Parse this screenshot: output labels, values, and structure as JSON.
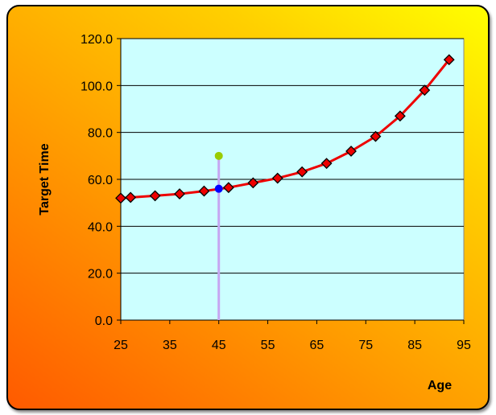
{
  "chart_data": {
    "type": "line",
    "xlabel": "Age",
    "ylabel": "Target Time",
    "xlim": [
      25,
      95
    ],
    "ylim": [
      0,
      120
    ],
    "x_ticks": [
      "25",
      "35",
      "45",
      "55",
      "65",
      "75",
      "85",
      "95"
    ],
    "y_ticks": [
      "0.0",
      "20.0",
      "40.0",
      "60.0",
      "80.0",
      "100.0",
      "120.0"
    ],
    "grid": "horizontal",
    "series": [
      {
        "color": "#ee0000",
        "marker_color": "#ee0000",
        "points": [
          {
            "x": 25,
            "y": 52.0
          },
          {
            "x": 27,
            "y": 52.3
          },
          {
            "x": 32,
            "y": 53.0
          },
          {
            "x": 37,
            "y": 53.8
          },
          {
            "x": 42,
            "y": 55.0
          },
          {
            "x": 47,
            "y": 56.5
          },
          {
            "x": 52,
            "y": 58.5
          },
          {
            "x": 57,
            "y": 60.5
          },
          {
            "x": 62,
            "y": 63.2
          },
          {
            "x": 67,
            "y": 66.8
          },
          {
            "x": 72,
            "y": 72.0
          },
          {
            "x": 77,
            "y": 78.3
          },
          {
            "x": 82,
            "y": 87.0
          },
          {
            "x": 87,
            "y": 98.0
          },
          {
            "x": 92,
            "y": 111.0
          }
        ]
      }
    ],
    "annotation": {
      "x": 45,
      "line_color": "#c6a6f2",
      "top_point": {
        "x": 45,
        "y": 70.0,
        "color": "#99cc00"
      },
      "curve_point": {
        "x": 45,
        "y": 56.0,
        "color": "#0000ff"
      }
    },
    "plot_background": "#ccffff",
    "frame_gradient": [
      "#ff5a00",
      "#ffff00"
    ]
  }
}
